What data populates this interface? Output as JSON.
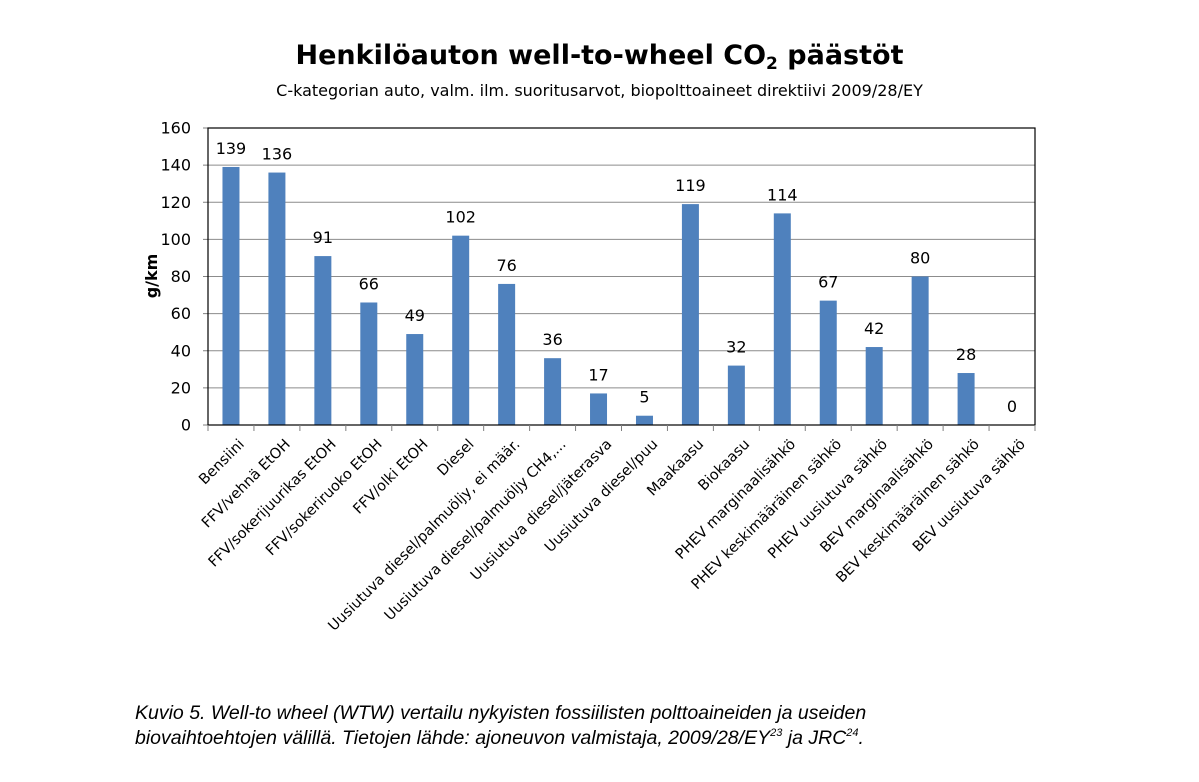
{
  "chart_data": {
    "type": "bar",
    "title": "Henkilöauton well-to-wheel CO",
    "title_subscript": "2",
    "title_suffix": " päästöt",
    "subtitle": "C-kategorian auto, valm. ilm. suoritusarvot, biopolttoaineet direktiivi 2009/28/EY",
    "ylabel": "g/km",
    "xlabel": "",
    "ylim": [
      0,
      160
    ],
    "yticks": [
      0,
      20,
      40,
      60,
      80,
      100,
      120,
      140,
      160
    ],
    "grid": true,
    "bar_color": "#4f81bd",
    "categories": [
      "Bensiini",
      "FFV/vehnä EtOH",
      "FFV/sokerijuurikas EtOH",
      "FFV/sokeriruoko EtOH",
      "FFV/olki EtOH",
      "Diesel",
      "Uusiutuva diesel/palmuöljy, ei määr.",
      "Uusiutuva diesel/palmuöljy CH4,...",
      "Uusiutuva diesel/jäterasva",
      "Uusiutuva diesel/puu",
      "Maakaasu",
      "Biokaasu",
      "PHEV marginaalisähkö",
      "PHEV keskimääräinen sähkö",
      "PHEV uusiutuva sähkö",
      "BEV marginaalisähkö",
      "BEV keskimääräinen sähkö",
      "BEV uusiutuva sähkö"
    ],
    "values": [
      139,
      136,
      91,
      66,
      49,
      102,
      76,
      36,
      17,
      5,
      119,
      32,
      114,
      67,
      42,
      80,
      28,
      0
    ]
  },
  "caption": {
    "line1": "Kuvio 5. Well-to wheel (WTW) vertailu nykyisten fossiilisten polttoaineiden ja useiden",
    "line2_text": "biovaihtoehtojen välillä. Tietojen lähde: ajoneuvon valmistaja, 2009/28/EY",
    "line2_sup1": "23",
    "line2_mid": " ja JRC",
    "line2_sup2": "24",
    "line2_end": "."
  }
}
